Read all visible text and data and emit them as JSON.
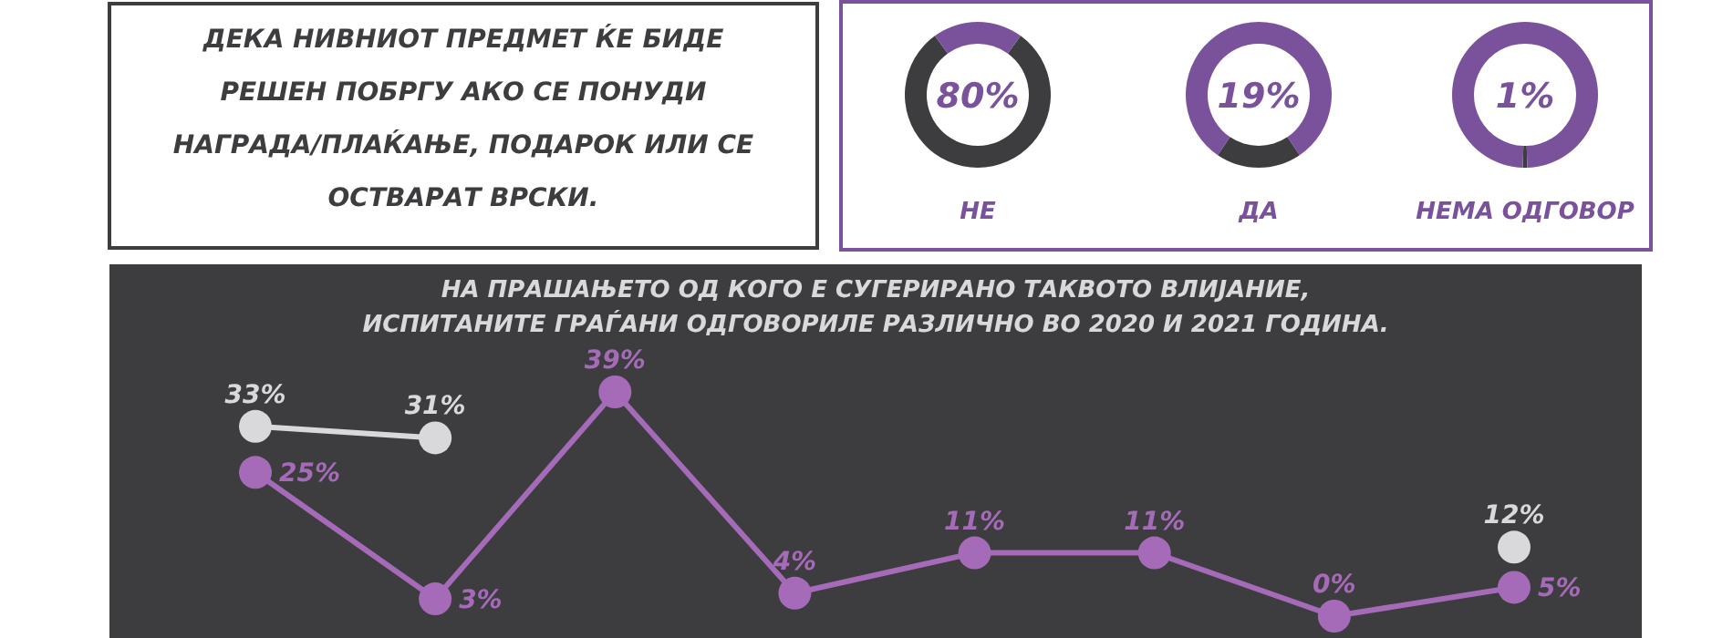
{
  "chart_data": [
    {
      "type": "other",
      "title": "ДЕКА НИВНИОТ ПРЕДМЕТ ЌЕ БИДЕ РЕШЕН ПОБРГУ АКО СЕ ПОНУДИ НАГРАДА/ПЛАЌАЊЕ, ПОДАРОК ИЛИ СЕ ОСТВАРАТ ВРСКИ."
    },
    {
      "type": "donut",
      "categories": [
        "НЕ",
        null
      ],
      "values": [
        80,
        20
      ],
      "colors": [
        "#3d3c3f",
        "#7a529c"
      ],
      "value_labels": [
        "80%",
        null
      ]
    },
    {
      "type": "donut",
      "categories": [
        "ДА",
        null
      ],
      "values": [
        19,
        81
      ],
      "colors": [
        "#3d3c3f",
        "#7a529c"
      ],
      "value_labels": [
        "19%",
        null
      ]
    },
    {
      "type": "donut",
      "categories": [
        "НЕМА ОДГОВОР",
        null
      ],
      "values": [
        1,
        99
      ],
      "colors": [
        "#3d3c3f",
        "#7a529c"
      ],
      "value_labels": [
        "1%",
        null
      ]
    },
    {
      "type": "line",
      "title": "НА ПРАШАЊЕТО ОД КОГО Е СУГЕРИРАНО ТАКВОТО ВЛИЈАНИЕ,\nИСПИТАНИТЕ ГРАЃАНИ ОДГОВОРИЛЕ РАЗЛИЧНО ВО 2020 И 2021 ГОДИНА.",
      "categories": [
        null,
        null,
        null,
        null,
        null,
        null,
        null,
        null
      ],
      "marker": "circle",
      "series": [
        {
          "color": "#d9d9db",
          "values": [
            33,
            31,
            null,
            null,
            null,
            null,
            null,
            12
          ],
          "value_labels": [
            "33%",
            "31%",
            null,
            null,
            null,
            null,
            null,
            "12%"
          ]
        },
        {
          "color": "#a56bb9",
          "values": [
            25,
            3,
            39,
            4,
            11,
            11,
            0,
            5
          ],
          "value_labels": [
            "25%",
            "3%",
            "39%",
            "4%",
            "11%",
            "11%",
            "0%",
            "5%"
          ]
        }
      ]
    }
  ]
}
